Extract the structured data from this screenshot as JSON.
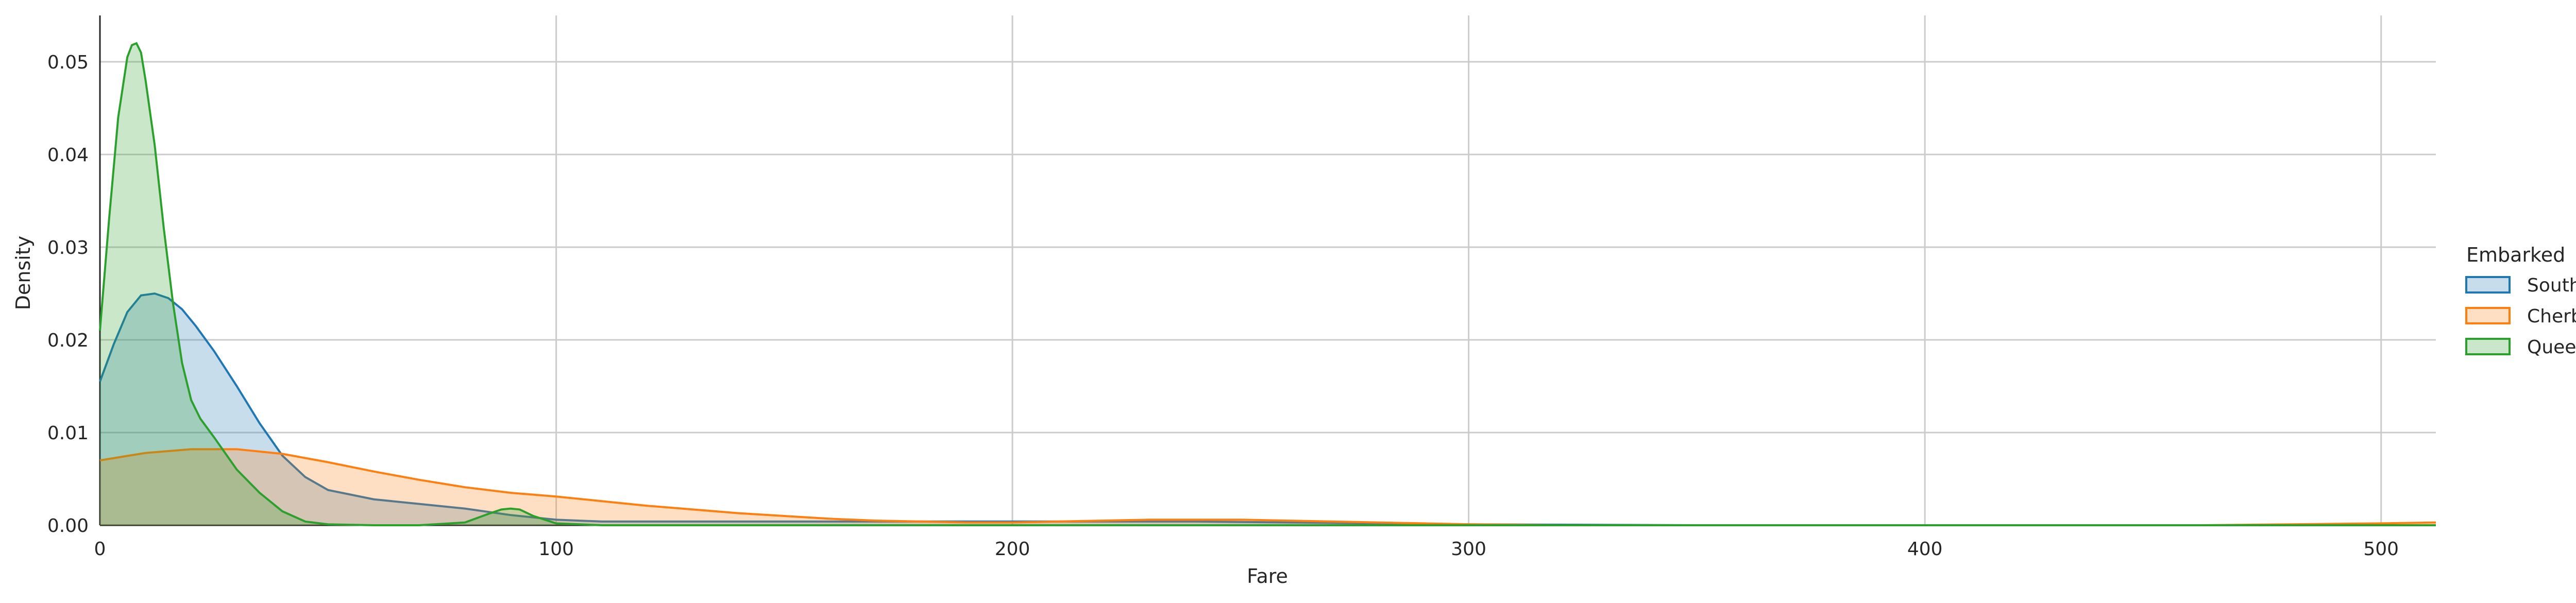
{
  "chart_data": {
    "type": "area",
    "title": "",
    "xlabel": "Fare",
    "ylabel": "Density",
    "xlim": [
      0,
      512
    ],
    "ylim": [
      0,
      0.055
    ],
    "x_ticks": [
      0,
      100,
      200,
      300,
      400,
      500
    ],
    "y_ticks": [
      0.0,
      0.01,
      0.02,
      0.03,
      0.04,
      0.05
    ],
    "grid": true,
    "legend_title": "Embarked",
    "legend_position": "right",
    "colors": {
      "Southhampton": "#1f77b4",
      "Cherbourg": "#ff7f0e",
      "Queenstown": "#2ca02c"
    },
    "series": [
      {
        "name": "Southhampton",
        "color": "#1f77b4",
        "x": [
          0,
          3,
          6,
          9,
          12,
          15,
          18,
          21,
          25,
          30,
          35,
          40,
          45,
          50,
          60,
          70,
          80,
          90,
          100,
          110,
          120,
          140,
          160,
          180,
          200,
          220,
          240,
          260,
          280,
          300,
          350,
          400,
          450,
          500,
          512
        ],
        "y": [
          0.0155,
          0.0195,
          0.023,
          0.0248,
          0.025,
          0.0245,
          0.0233,
          0.0215,
          0.0188,
          0.015,
          0.011,
          0.0075,
          0.0052,
          0.0038,
          0.0028,
          0.0023,
          0.0018,
          0.0011,
          0.0006,
          0.0004,
          0.0004,
          0.0004,
          0.0004,
          0.0004,
          0.0004,
          0.0004,
          0.0004,
          0.0003,
          0.0002,
          0.0001,
          0.0,
          0.0,
          0.0,
          0.0,
          0.0
        ]
      },
      {
        "name": "Cherbourg",
        "color": "#ff7f0e",
        "x": [
          0,
          10,
          20,
          30,
          40,
          50,
          60,
          70,
          80,
          90,
          100,
          110,
          120,
          130,
          140,
          150,
          160,
          170,
          180,
          190,
          200,
          210,
          220,
          230,
          240,
          250,
          260,
          270,
          280,
          290,
          300,
          320,
          340,
          360,
          380,
          400,
          420,
          440,
          460,
          480,
          500,
          512
        ],
        "y": [
          0.007,
          0.0078,
          0.0082,
          0.0082,
          0.0077,
          0.0068,
          0.0058,
          0.0049,
          0.0041,
          0.0035,
          0.0031,
          0.0026,
          0.0021,
          0.0017,
          0.0013,
          0.001,
          0.0007,
          0.0005,
          0.0004,
          0.0003,
          0.0003,
          0.0004,
          0.0005,
          0.0006,
          0.0006,
          0.0006,
          0.0005,
          0.0004,
          0.0003,
          0.0002,
          0.0001,
          0.0,
          0.0,
          0.0,
          0.0,
          0.0,
          0.0,
          0.0,
          0.0,
          0.0001,
          0.0002,
          0.0003
        ]
      },
      {
        "name": "Queenstown",
        "color": "#2ca02c",
        "x": [
          0,
          2,
          4,
          6,
          7,
          8,
          9,
          10,
          12,
          14,
          16,
          18,
          20,
          22,
          25,
          30,
          35,
          40,
          45,
          50,
          60,
          70,
          80,
          85,
          88,
          90,
          92,
          95,
          100,
          110,
          512
        ],
        "y": [
          0.021,
          0.033,
          0.044,
          0.0505,
          0.0518,
          0.052,
          0.051,
          0.048,
          0.041,
          0.032,
          0.024,
          0.0175,
          0.0135,
          0.0115,
          0.0095,
          0.006,
          0.0035,
          0.0015,
          0.0004,
          0.0001,
          0.0,
          0.0,
          0.0003,
          0.0012,
          0.0017,
          0.0018,
          0.0017,
          0.001,
          0.0002,
          0.0,
          0.0
        ]
      }
    ]
  }
}
